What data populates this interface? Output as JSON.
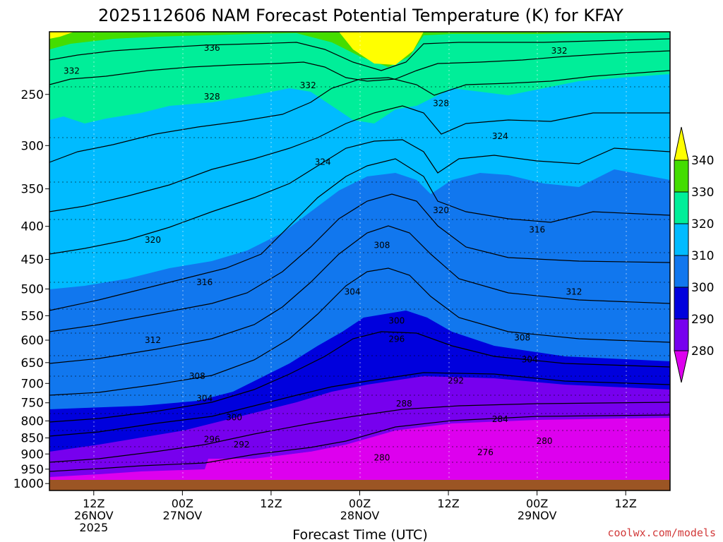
{
  "chart_data": {
    "type": "heatmap",
    "title": "2025112606 NAM Forecast Potential Temperature (K) for KFAY",
    "xlabel": "Forecast Time (UTC)",
    "credit": "coolwx.com/models",
    "x_ticks": [
      {
        "hour": 6,
        "l1": "12Z",
        "l2": "26NOV",
        "l3": "2025"
      },
      {
        "hour": 18,
        "l1": "00Z",
        "l2": "27NOV",
        "l3": ""
      },
      {
        "hour": 30,
        "l1": "12Z",
        "l2": "",
        "l3": ""
      },
      {
        "hour": 42,
        "l1": "00Z",
        "l2": "28NOV",
        "l3": ""
      },
      {
        "hour": 54,
        "l1": "12Z",
        "l2": "",
        "l3": ""
      },
      {
        "hour": 66,
        "l1": "00Z",
        "l2": "29NOV",
        "l3": ""
      },
      {
        "hour": 78,
        "l1": "12Z",
        "l2": "",
        "l3": ""
      }
    ],
    "y_ticks": [
      "250",
      "300",
      "350",
      "400",
      "450",
      "500",
      "550",
      "600",
      "650",
      "700",
      "750",
      "800",
      "850",
      "900",
      "950",
      "1000"
    ],
    "y_tick_values": [
      250,
      300,
      350,
      400,
      450,
      500,
      550,
      600,
      650,
      700,
      750,
      800,
      850,
      900,
      950,
      1000
    ],
    "ylim": [
      200,
      1025
    ],
    "xlim": [
      0,
      84
    ],
    "colorbar": {
      "ticks": [
        "340",
        "330",
        "320",
        "310",
        "300",
        "290",
        "280"
      ],
      "colors": [
        "#ffff00",
        "#44dd00",
        "#00ee99",
        "#00bbff",
        "#1177ee",
        "#0000dd",
        "#7700ee",
        "#dd00ee"
      ]
    },
    "contour_labels": [
      {
        "text": "336",
        "hour": 22,
        "p": 212
      },
      {
        "text": "332",
        "hour": 3,
        "p": 230
      },
      {
        "text": "332",
        "hour": 35,
        "p": 242
      },
      {
        "text": "332",
        "hour": 69,
        "p": 214
      },
      {
        "text": "328",
        "hour": 22,
        "p": 252
      },
      {
        "text": "328",
        "hour": 53,
        "p": 258
      },
      {
        "text": "324",
        "hour": 37,
        "p": 318
      },
      {
        "text": "324",
        "hour": 61,
        "p": 290
      },
      {
        "text": "320",
        "hour": 14,
        "p": 420
      },
      {
        "text": "320",
        "hour": 53,
        "p": 378
      },
      {
        "text": "316",
        "hour": 21,
        "p": 488
      },
      {
        "text": "316",
        "hour": 66,
        "p": 405
      },
      {
        "text": "312",
        "hour": 14,
        "p": 600
      },
      {
        "text": "312",
        "hour": 71,
        "p": 505
      },
      {
        "text": "308",
        "hour": 20,
        "p": 682
      },
      {
        "text": "308",
        "hour": 45,
        "p": 428
      },
      {
        "text": "308",
        "hour": 64,
        "p": 595
      },
      {
        "text": "304",
        "hour": 21,
        "p": 738
      },
      {
        "text": "304",
        "hour": 41,
        "p": 505
      },
      {
        "text": "304",
        "hour": 65,
        "p": 643
      },
      {
        "text": "300",
        "hour": 25,
        "p": 790
      },
      {
        "text": "300",
        "hour": 47,
        "p": 560
      },
      {
        "text": "296",
        "hour": 22,
        "p": 854
      },
      {
        "text": "296",
        "hour": 47,
        "p": 598
      },
      {
        "text": "292",
        "hour": 26,
        "p": 870
      },
      {
        "text": "292",
        "hour": 55,
        "p": 693
      },
      {
        "text": "288",
        "hour": 48,
        "p": 752
      },
      {
        "text": "284",
        "hour": 61,
        "p": 795
      },
      {
        "text": "280",
        "hour": 45,
        "p": 912
      },
      {
        "text": "280",
        "hour": 67,
        "p": 860
      },
      {
        "text": "276",
        "hour": 59,
        "p": 895
      }
    ]
  }
}
